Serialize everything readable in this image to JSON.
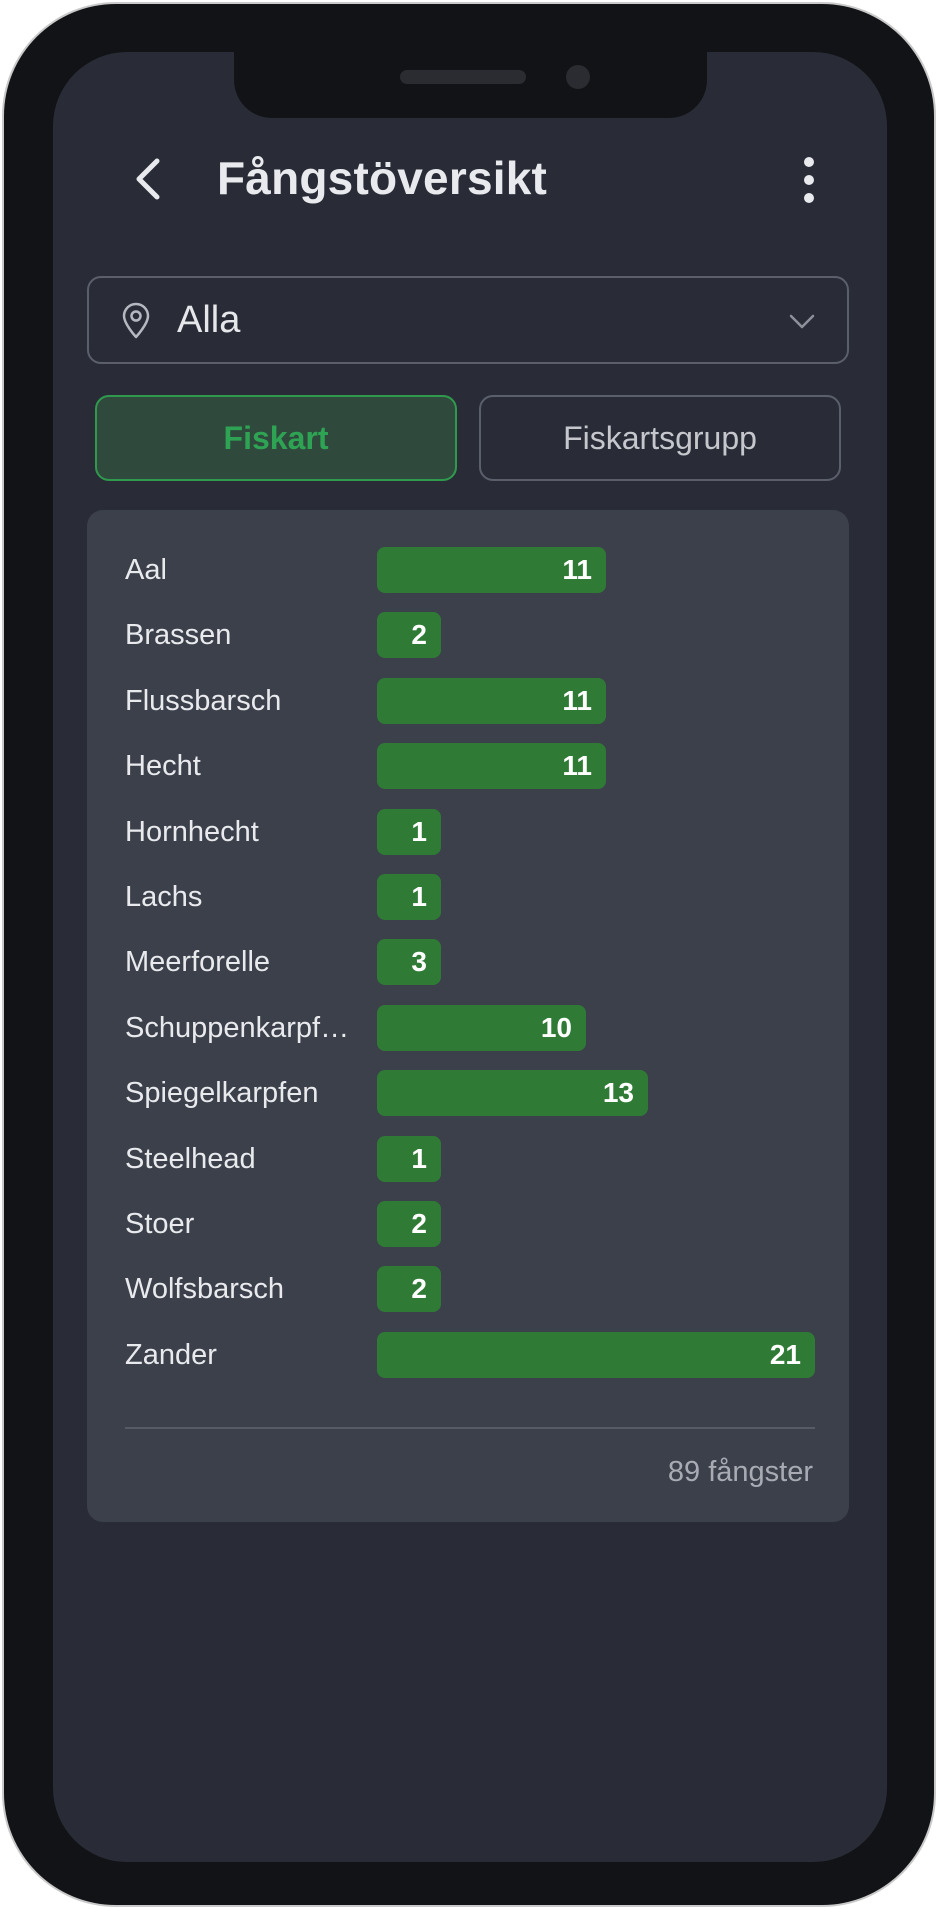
{
  "header": {
    "title": "Fångstöversikt",
    "back_icon": "chevron-left-icon",
    "menu_icon": "more-vertical-icon"
  },
  "location": {
    "value": "Alla",
    "icon": "map-pin-icon",
    "dropdown_icon": "chevron-down-icon"
  },
  "toggle": {
    "options": [
      "Fiskart",
      "Fiskartsgrupp"
    ],
    "selected": "Fiskart"
  },
  "colors": {
    "background": "#292c37",
    "card": "#3b404a",
    "bar": "#2f7b36",
    "accent": "#2fa354"
  },
  "chart_data": {
    "type": "bar",
    "orientation": "horizontal",
    "categories": [
      "Aal",
      "Brassen",
      "Flussbarsch",
      "Hecht",
      "Hornhecht",
      "Lachs",
      "Meerforelle",
      "Schuppenkarpf…",
      "Spiegelkarpfen",
      "Steelhead",
      "Stoer",
      "Wolfsbarsch",
      "Zander"
    ],
    "values": [
      11,
      2,
      11,
      11,
      1,
      1,
      3,
      10,
      13,
      1,
      2,
      2,
      21
    ],
    "data_labels": true
  },
  "summary": {
    "total_label": "89 fångster"
  }
}
